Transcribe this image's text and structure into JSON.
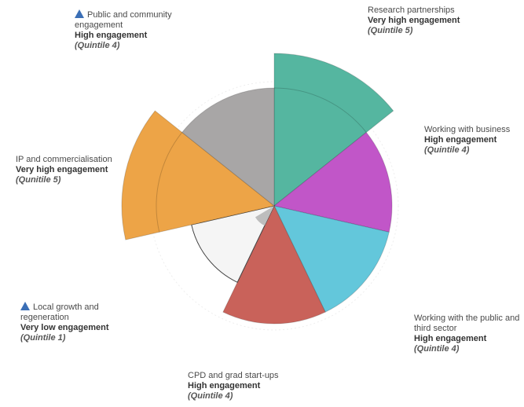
{
  "chart_data": {
    "type": "polar-area",
    "max_quintile": 5,
    "segments": [
      {
        "id": "research",
        "name": "Research partnerships",
        "engagement": "Very high engagement",
        "quintile_label": "(Quintile 5)",
        "quintile": 5,
        "color": "#55b6a0",
        "flag": false
      },
      {
        "id": "business",
        "name": "Working with business",
        "engagement": "High engagement",
        "quintile_label": "(Quintile 4)",
        "quintile": 4,
        "color": "#c156c8",
        "flag": false
      },
      {
        "id": "public",
        "name": "Working with the public and third sector",
        "engagement": "High engagement",
        "quintile_label": "(Quintile 4)",
        "quintile": 4,
        "color": "#63c7db",
        "flag": false
      },
      {
        "id": "cpd",
        "name": "CPD and grad start-ups",
        "engagement": "High engagement",
        "quintile_label": "(Quintile 4)",
        "quintile": 4,
        "color": "#c9625a",
        "flag": false
      },
      {
        "id": "local",
        "name": "Local growth and regeneration",
        "engagement": "Very low engagement",
        "quintile_label": "(Quintile 1)",
        "quintile": 1,
        "color": "#f5f5f5",
        "flag": true
      },
      {
        "id": "ip",
        "name": "IP and commercialisation",
        "engagement": "Very high engagement",
        "quintile_label": "(Qunitile 5)",
        "quintile": 5,
        "color": "#eda447",
        "flag": false
      },
      {
        "id": "community",
        "name": "Public and community engagement",
        "engagement": "High engagement",
        "quintile_label": "(Quintile 4)",
        "quintile": 4,
        "color": "#a8a6a6",
        "flag": true
      }
    ]
  }
}
